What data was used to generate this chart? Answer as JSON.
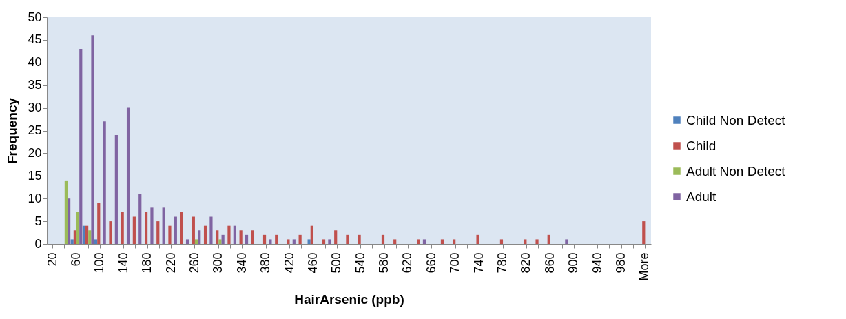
{
  "chart_data": {
    "type": "bar",
    "xlabel": "HairArsenic (ppb)",
    "ylabel": "Frequency",
    "categories": [
      "20",
      null,
      "60",
      null,
      "100",
      null,
      "140",
      null,
      "180",
      null,
      "220",
      null,
      "260",
      null,
      "300",
      null,
      "340",
      null,
      "380",
      null,
      "420",
      null,
      "460",
      null,
      "500",
      null,
      "540",
      null,
      "580",
      null,
      "620",
      null,
      "660",
      null,
      "700",
      null,
      "740",
      null,
      "780",
      null,
      "820",
      null,
      "860",
      null,
      "900",
      null,
      "940",
      null,
      "980",
      null,
      "More"
    ],
    "series": [
      {
        "name": "Child Non Detect",
        "color": "#4f81bd",
        "values": [
          0,
          0,
          1,
          4,
          1,
          0,
          0,
          0,
          0,
          0,
          0,
          0,
          0,
          0,
          0,
          0,
          0,
          0,
          0,
          0,
          0,
          0,
          1,
          0,
          0,
          0,
          0,
          0,
          0,
          0,
          0,
          0,
          0,
          0,
          0,
          0,
          0,
          0,
          0,
          0,
          0,
          0,
          0,
          0,
          0,
          0,
          0,
          0,
          0,
          0,
          0
        ]
      },
      {
        "name": "Child",
        "color": "#c0504d",
        "values": [
          0,
          0,
          3,
          4,
          9,
          5,
          7,
          6,
          7,
          5,
          4,
          7,
          6,
          4,
          3,
          4,
          3,
          3,
          2,
          2,
          1,
          2,
          4,
          1,
          3,
          2,
          2,
          0,
          2,
          1,
          0,
          1,
          0,
          1,
          1,
          0,
          2,
          0,
          1,
          0,
          1,
          1,
          2,
          0,
          0,
          0,
          0,
          0,
          0,
          0,
          5
        ]
      },
      {
        "name": "Adult Non Detect",
        "color": "#9bbb59",
        "values": [
          0,
          14,
          7,
          3,
          0,
          0,
          0,
          0,
          0,
          0,
          0,
          0,
          1,
          0,
          1,
          0,
          0,
          0,
          0,
          0,
          0,
          0,
          0,
          0,
          0,
          0,
          0,
          0,
          0,
          0,
          0,
          0,
          0,
          0,
          0,
          0,
          0,
          0,
          0,
          0,
          0,
          0,
          0,
          0,
          0,
          0,
          0,
          0,
          0,
          0,
          0
        ]
      },
      {
        "name": "Adult",
        "color": "#8064a2",
        "values": [
          0,
          10,
          43,
          46,
          27,
          24,
          30,
          11,
          8,
          8,
          6,
          1,
          3,
          6,
          2,
          4,
          2,
          0,
          1,
          0,
          1,
          0,
          0,
          1,
          0,
          0,
          0,
          0,
          0,
          0,
          0,
          1,
          0,
          0,
          0,
          0,
          0,
          0,
          0,
          0,
          0,
          0,
          0,
          1,
          0,
          0,
          0,
          0,
          0,
          0,
          0
        ]
      }
    ],
    "ylim": [
      0,
      50
    ],
    "yticks": [
      0,
      5,
      10,
      15,
      20,
      25,
      30,
      35,
      40,
      45,
      50
    ],
    "grid": false,
    "legend": "right"
  }
}
